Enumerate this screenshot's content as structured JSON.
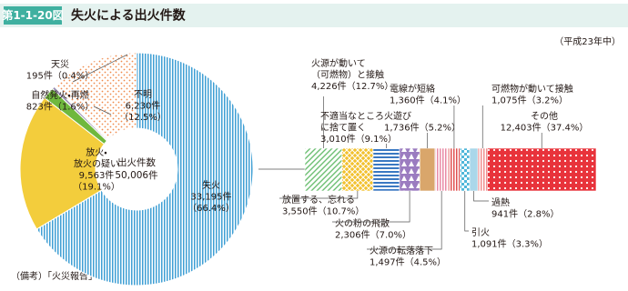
{
  "header": {
    "figure": "第1-1-20図",
    "title": "失火による出火件数"
  },
  "period": "（平成23年中）",
  "source": "（備考）「火災報告」により作成",
  "chart_data": [
    {
      "type": "pie",
      "donut": true,
      "center_label": "出火件数",
      "total": 50006,
      "total_label": "50,006件",
      "categories": [
        [
          "失火"
        ],
        [
          "放火・",
          "放火の疑い"
        ],
        [
          "自然発火・再燃"
        ],
        [
          "天災"
        ],
        [
          "不明"
        ]
      ],
      "values": [
        33195,
        9563,
        823,
        195,
        6230
      ],
      "value_labels": [
        "33,195件",
        "9,563件",
        "823件",
        "195件",
        "6,230件"
      ],
      "share_labels": [
        "（66.4%）",
        "（19.1%）",
        "（1.6%）",
        "（0.4%）",
        "（12.5%）"
      ],
      "colors": [
        "#3f9fd4",
        "#f3cd3c",
        "#6fb83e",
        "#9a8fb4",
        "#f08a4b"
      ],
      "patterns": [
        "vstripe",
        "solid",
        "solid",
        "solid",
        "speckle"
      ]
    },
    {
      "type": "bar",
      "stacked": true,
      "orientation": "horizontal",
      "categories": [
        [
          "火源が動いて",
          "（可燃物）と接触"
        ],
        [
          "放置する、忘れる"
        ],
        [
          "不適当なところ",
          "に捨て置く"
        ],
        [
          "火の粉の飛散"
        ],
        [
          "火遊び"
        ],
        [
          "火源の転落落下"
        ],
        [
          "電線が短絡"
        ],
        [
          "引火"
        ],
        [
          "過熱"
        ],
        [
          "可燃物が動いて接触"
        ],
        [
          "その他"
        ]
      ],
      "values": [
        4226,
        3550,
        3010,
        2306,
        1736,
        1497,
        1360,
        1091,
        941,
        1075,
        12403
      ],
      "value_labels": [
        "4,226件",
        "3,550件",
        "3,010件",
        "2,306件",
        "1,736件",
        "1,497件",
        "1,360件",
        "1,091件",
        "941件",
        "1,075件",
        "12,403件"
      ],
      "share_labels": [
        "（12.7%）",
        "（10.7%）",
        "（9.1%）",
        "（7.0%）",
        "（5.2%）",
        "（4.5%）",
        "（4.1%）",
        "（3.3%）",
        "（2.8%）",
        "（3.2%）",
        "（37.4%）"
      ],
      "colors": [
        "#6dbf73",
        "#f2c12e",
        "#3a78c2",
        "#9b7cc0",
        "#d9a66b",
        "#e88aa6",
        "#e05050",
        "#4fb6d9",
        "#aad7ea",
        "#f08e8e",
        "#e8333b"
      ],
      "patterns": [
        "diag",
        "hatch",
        "hstripe",
        "tri",
        "solid",
        "vstripe",
        "vstripe",
        "check",
        "solid",
        "vstripe",
        "dots"
      ]
    }
  ]
}
